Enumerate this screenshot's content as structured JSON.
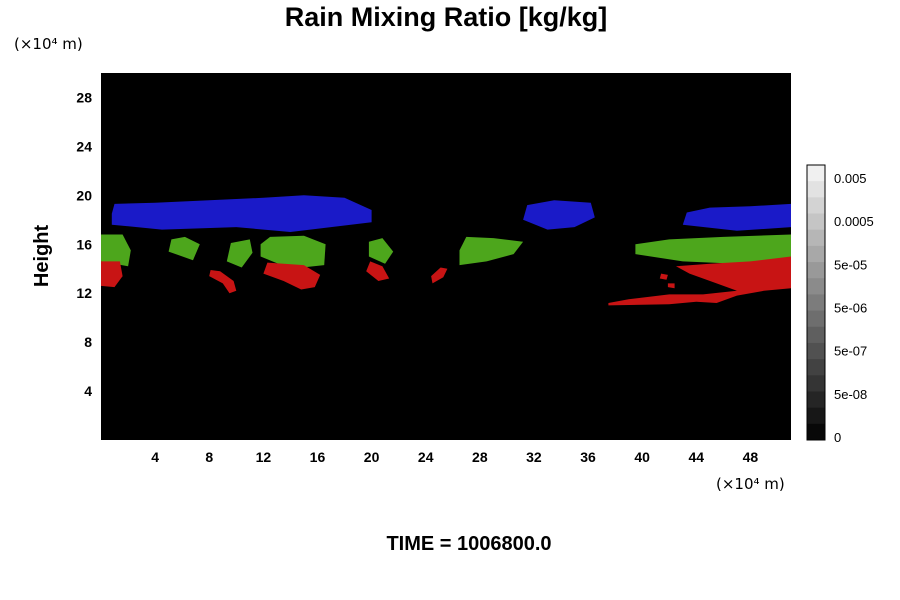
{
  "chart_data": {
    "type": "heatmap",
    "title": "Rain Mixing Ratio [kg/kg]",
    "xlabel": "",
    "ylabel": "Height",
    "x_unit": "(×10⁴ m)",
    "y_unit": "(×10⁴ m)",
    "xlim": [
      0,
      51
    ],
    "ylim": [
      0,
      30
    ],
    "x_ticks": [
      4,
      8,
      12,
      16,
      20,
      24,
      28,
      32,
      36,
      40,
      44,
      48
    ],
    "y_ticks": [
      4,
      8,
      12,
      16,
      20,
      24,
      28
    ],
    "colorbar": {
      "tick_labels": [
        "0.005",
        "0.0005",
        "5e-05",
        "5e-06",
        "5e-07",
        "5e-08",
        "0"
      ],
      "levels": 17
    },
    "background_value": "0",
    "regions": [
      {
        "color": "#1a1ac8",
        "points": [
          [
            0.8,
            17.6
          ],
          [
            4.5,
            17.2
          ],
          [
            10,
            17.4
          ],
          [
            14,
            17.0
          ],
          [
            20,
            17.8
          ],
          [
            20,
            18.8
          ],
          [
            18,
            19.8
          ],
          [
            15,
            20.0
          ],
          [
            12,
            19.8
          ],
          [
            8,
            19.6
          ],
          [
            4,
            19.4
          ],
          [
            1,
            19.3
          ],
          [
            0.8,
            18.5
          ]
        ]
      },
      {
        "color": "#1a1ac8",
        "points": [
          [
            31.2,
            18.0
          ],
          [
            33,
            17.2
          ],
          [
            35,
            17.4
          ],
          [
            36.5,
            18.2
          ],
          [
            36.2,
            19.4
          ],
          [
            33.5,
            19.6
          ],
          [
            31.5,
            19.2
          ]
        ]
      },
      {
        "color": "#1a1ac8",
        "points": [
          [
            43,
            17.6
          ],
          [
            47,
            17.1
          ],
          [
            51,
            17.4
          ],
          [
            51,
            19.3
          ],
          [
            48,
            19.1
          ],
          [
            45,
            19.0
          ],
          [
            43.3,
            18.6
          ]
        ]
      },
      {
        "color": "#4da61c",
        "points": [
          [
            0,
            14.6
          ],
          [
            2,
            14.2
          ],
          [
            2.2,
            15.5
          ],
          [
            1.6,
            16.8
          ],
          [
            0,
            16.8
          ]
        ]
      },
      {
        "color": "#4da61c",
        "points": [
          [
            5,
            15.4
          ],
          [
            6.8,
            14.7
          ],
          [
            7.3,
            16.0
          ],
          [
            6.2,
            16.6
          ],
          [
            5.2,
            16.4
          ]
        ]
      },
      {
        "color": "#4da61c",
        "points": [
          [
            9.3,
            14.6
          ],
          [
            10.4,
            14.1
          ],
          [
            11.2,
            15.3
          ],
          [
            11,
            16.4
          ],
          [
            9.6,
            16.1
          ]
        ]
      },
      {
        "color": "#4da61c",
        "points": [
          [
            11.8,
            15.0
          ],
          [
            14,
            14.0
          ],
          [
            16.5,
            14.3
          ],
          [
            16.6,
            16.0
          ],
          [
            15,
            16.7
          ],
          [
            12.5,
            16.6
          ],
          [
            11.8,
            16.0
          ]
        ]
      },
      {
        "color": "#4da61c",
        "points": [
          [
            19.8,
            15.0
          ],
          [
            21,
            14.4
          ],
          [
            21.6,
            15.4
          ],
          [
            20.8,
            16.5
          ],
          [
            19.8,
            16.2
          ]
        ]
      },
      {
        "color": "#4da61c",
        "points": [
          [
            26.5,
            14.3
          ],
          [
            28.5,
            14.6
          ],
          [
            30.5,
            15.2
          ],
          [
            31.2,
            16.2
          ],
          [
            29,
            16.5
          ],
          [
            27,
            16.6
          ],
          [
            26.5,
            15.5
          ]
        ]
      },
      {
        "color": "#4da61c",
        "points": [
          [
            39.5,
            15.2
          ],
          [
            43,
            14.6
          ],
          [
            47,
            14.4
          ],
          [
            51,
            14.6
          ],
          [
            51,
            16.8
          ],
          [
            46,
            16.6
          ],
          [
            42,
            16.4
          ],
          [
            39.5,
            16.0
          ]
        ]
      },
      {
        "color": "#c81414",
        "points": [
          [
            0,
            12.6
          ],
          [
            1,
            12.5
          ],
          [
            1.6,
            13.4
          ],
          [
            1.4,
            14.6
          ],
          [
            0,
            14.6
          ]
        ]
      },
      {
        "color": "#c81414",
        "points": [
          [
            8,
            13.4
          ],
          [
            9,
            12.8
          ],
          [
            9.5,
            12.0
          ],
          [
            10.0,
            12.2
          ],
          [
            9.8,
            13.0
          ],
          [
            8.8,
            13.8
          ],
          [
            8.1,
            13.9
          ]
        ]
      },
      {
        "color": "#c81414",
        "points": [
          [
            12,
            13.6
          ],
          [
            13.5,
            13.0
          ],
          [
            14.8,
            12.3
          ],
          [
            15.8,
            12.5
          ],
          [
            16.2,
            13.5
          ],
          [
            15,
            14.3
          ],
          [
            12.3,
            14.5
          ]
        ]
      },
      {
        "color": "#c81414",
        "points": [
          [
            19.6,
            13.8
          ],
          [
            20.5,
            13.0
          ],
          [
            21.3,
            13.2
          ],
          [
            20.8,
            14.2
          ],
          [
            19.9,
            14.6
          ]
        ]
      },
      {
        "color": "#c81414",
        "points": [
          [
            24.5,
            12.8
          ],
          [
            25.3,
            13.3
          ],
          [
            25.6,
            14.0
          ],
          [
            25.1,
            14.1
          ],
          [
            24.4,
            13.4
          ]
        ]
      },
      {
        "color": "#c81414",
        "points": [
          [
            37.5,
            11.0
          ],
          [
            42,
            11.1
          ],
          [
            44,
            11.3
          ],
          [
            45.5,
            11.2
          ],
          [
            47,
            11.8
          ],
          [
            49,
            12.2
          ],
          [
            51,
            12.4
          ],
          [
            51,
            15.0
          ],
          [
            48,
            14.6
          ],
          [
            45,
            14.4
          ],
          [
            42.5,
            14.2
          ],
          [
            43.5,
            13.6
          ],
          [
            45.5,
            12.8
          ],
          [
            47,
            12.2
          ],
          [
            44.5,
            11.9
          ],
          [
            42,
            11.9
          ],
          [
            39,
            11.5
          ],
          [
            37.5,
            11.2
          ]
        ]
      },
      {
        "color": "#c81414",
        "points": [
          [
            41.3,
            13.2
          ],
          [
            41.8,
            13.1
          ],
          [
            41.9,
            13.5
          ],
          [
            41.4,
            13.6
          ]
        ]
      },
      {
        "color": "#c81414",
        "points": [
          [
            41.9,
            12.5
          ],
          [
            42.4,
            12.4
          ],
          [
            42.4,
            12.8
          ],
          [
            41.9,
            12.8
          ]
        ]
      }
    ]
  },
  "footer": {
    "time_label": "TIME = 1006800.0"
  }
}
